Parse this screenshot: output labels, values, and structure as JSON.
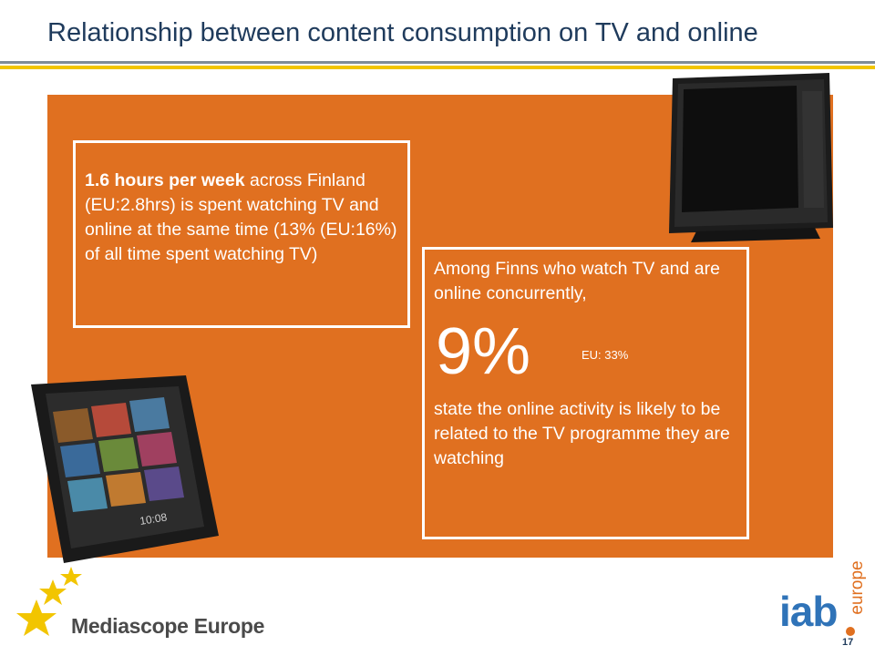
{
  "slide": {
    "title": "Relationship between content consumption on TV and online",
    "page_number": "17"
  },
  "box_left": {
    "bold_text": "1.6 hours per week",
    "text": " across Finland (EU:2.8hrs) is spent watching TV and online at the same time (13%  (EU:16%) of all time spent watching TV)"
  },
  "box_right": {
    "intro": "Among Finns who watch TV and are online concurrently,",
    "big_value": "9%",
    "eu_value": "EU: 33%",
    "outro": "state the online activity is likely to be related to the TV programme they are watching"
  },
  "tablet_screen": {
    "time": "10:08"
  },
  "branding": {
    "mediascope": "Mediascope Europe",
    "iab": "iab",
    "europe": "europe"
  },
  "colors": {
    "panel": "#e07020",
    "title": "#1f3b5c",
    "rule_yellow": "#f2c500",
    "iab_blue": "#2f73b8"
  }
}
